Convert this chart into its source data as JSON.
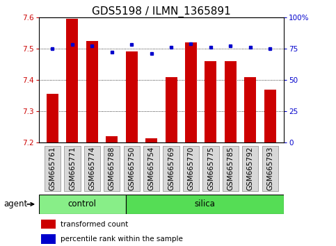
{
  "title": "GDS5198 / ILMN_1365891",
  "samples": [
    "GSM665761",
    "GSM665771",
    "GSM665774",
    "GSM665788",
    "GSM665750",
    "GSM665754",
    "GSM665769",
    "GSM665770",
    "GSM665775",
    "GSM665785",
    "GSM665792",
    "GSM665793"
  ],
  "groups": [
    "control",
    "control",
    "control",
    "control",
    "silica",
    "silica",
    "silica",
    "silica",
    "silica",
    "silica",
    "silica",
    "silica"
  ],
  "bar_values": [
    7.355,
    7.595,
    7.525,
    7.22,
    7.49,
    7.215,
    7.41,
    7.52,
    7.46,
    7.46,
    7.41,
    7.37
  ],
  "dot_values": [
    75,
    78,
    77,
    72,
    78,
    71,
    76,
    79,
    76,
    77,
    76,
    75
  ],
  "ylim_left": [
    7.2,
    7.6
  ],
  "ylim_right": [
    0,
    100
  ],
  "yticks_left": [
    7.2,
    7.3,
    7.4,
    7.5,
    7.6
  ],
  "yticks_right": [
    0,
    25,
    50,
    75,
    100
  ],
  "ytick_labels_right": [
    "0",
    "25",
    "50",
    "75",
    "100%"
  ],
  "bar_color": "#cc0000",
  "dot_color": "#0000cc",
  "bar_bottom": 7.2,
  "control_color": "#88ee88",
  "silica_color": "#55dd55",
  "control_label": "control",
  "silica_label": "silica",
  "agent_label": "agent",
  "legend_bar_label": "transformed count",
  "legend_dot_label": "percentile rank within the sample",
  "grid_yticks": [
    7.3,
    7.4,
    7.5
  ],
  "title_fontsize": 11,
  "tick_fontsize": 7.5,
  "label_fontsize": 8.5,
  "n_control": 4,
  "n_total": 12
}
